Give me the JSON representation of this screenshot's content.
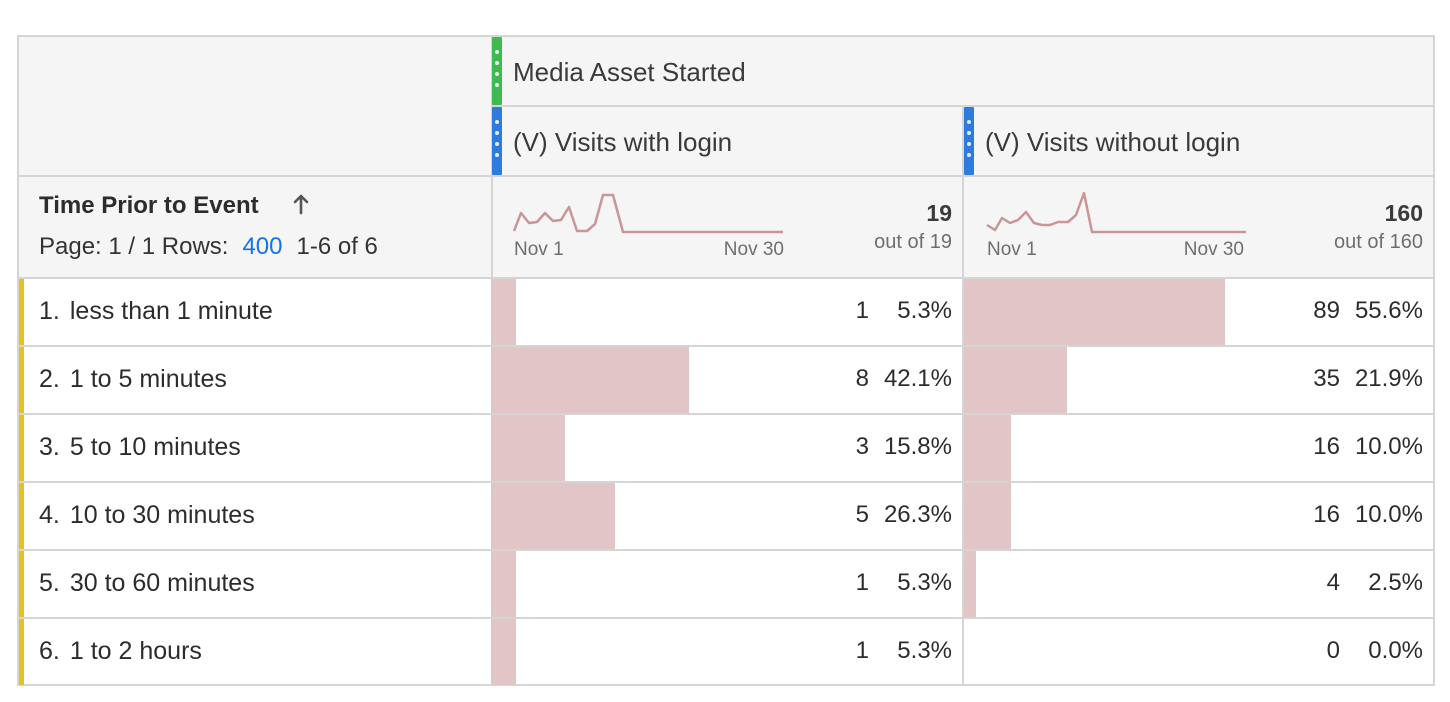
{
  "segment": {
    "title": "Media Asset Started",
    "color": "#3fba50"
  },
  "metrics": [
    {
      "title": "(V) Visits with login",
      "color": "#2d7bdc",
      "total": "19",
      "out_of": "out of 19",
      "spark_start": "Nov 1",
      "spark_end": "Nov 30"
    },
    {
      "title": "(V) Visits without login",
      "color": "#2d7bdc",
      "total": "160",
      "out_of": "out of 160",
      "spark_start": "Nov 1",
      "spark_end": "Nov 30"
    }
  ],
  "dimension": {
    "title": "Time Prior to Event",
    "sort_icon": "arrow-up-icon",
    "page_label": "Page: 1 / 1",
    "rows_label": "Rows:",
    "rows_value": "400",
    "range": "1-6 of 6"
  },
  "rows": [
    {
      "num": "1.",
      "label": "less than 1 minute",
      "c1": {
        "value": "1",
        "pct": "5.3%",
        "share": 0.053
      },
      "c2": {
        "value": "89",
        "pct": "55.6%",
        "share": 0.556
      }
    },
    {
      "num": "2.",
      "label": "1 to 5 minutes",
      "c1": {
        "value": "8",
        "pct": "42.1%",
        "share": 0.421
      },
      "c2": {
        "value": "35",
        "pct": "21.9%",
        "share": 0.219
      }
    },
    {
      "num": "3.",
      "label": "5 to 10 minutes",
      "c1": {
        "value": "3",
        "pct": "15.8%",
        "share": 0.158
      },
      "c2": {
        "value": "16",
        "pct": "10.0%",
        "share": 0.1
      }
    },
    {
      "num": "4.",
      "label": "10 to 30 minutes",
      "c1": {
        "value": "5",
        "pct": "26.3%",
        "share": 0.263
      },
      "c2": {
        "value": "16",
        "pct": "10.0%",
        "share": 0.1
      }
    },
    {
      "num": "5.",
      "label": "30 to 60 minutes",
      "c1": {
        "value": "1",
        "pct": "5.3%",
        "share": 0.053
      },
      "c2": {
        "value": "4",
        "pct": "2.5%",
        "share": 0.025
      }
    },
    {
      "num": "6.",
      "label": "1 to 2 hours",
      "c1": {
        "value": "1",
        "pct": "5.3%",
        "share": 0.053
      },
      "c2": {
        "value": "0",
        "pct": "0.0%",
        "share": 0.0
      }
    }
  ],
  "colors": {
    "bar": "#e2c6c7",
    "sparkline": "#c99597",
    "row_marker": "#e7c11c",
    "link": "#1473e6"
  }
}
